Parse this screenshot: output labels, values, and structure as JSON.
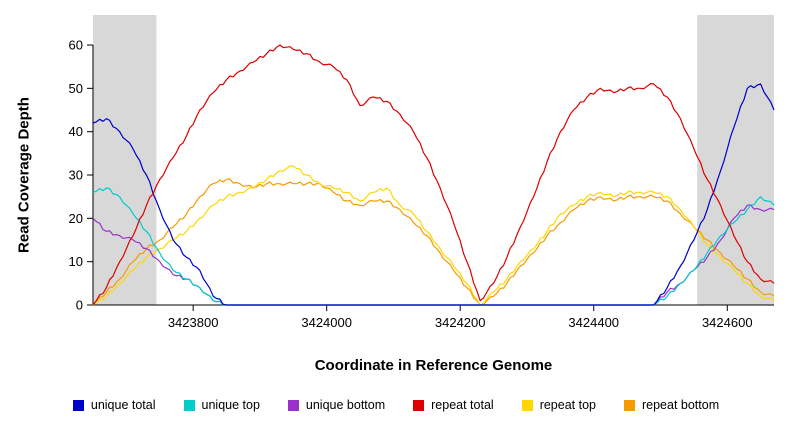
{
  "chart_data": {
    "type": "line",
    "title": "",
    "xlabel": "Coordinate in Reference Genome",
    "ylabel": "Read Coverage Depth",
    "xlim": [
      3423650,
      3424670
    ],
    "ylim": [
      0,
      60
    ],
    "x_ticks": [
      3423800,
      3424000,
      3424200,
      3424400,
      3424600
    ],
    "y_ticks": [
      0,
      10,
      20,
      30,
      40,
      50,
      60
    ],
    "grid": false,
    "legend_position": "bottom",
    "shaded_regions": [
      {
        "x0": 3423650,
        "x1": 3423745,
        "color": "#d8d8d8"
      },
      {
        "x0": 3424555,
        "x1": 3424670,
        "color": "#d8d8d8"
      }
    ],
    "x": [
      3423650,
      3423670,
      3423690,
      3423710,
      3423730,
      3423750,
      3423770,
      3423790,
      3423810,
      3423830,
      3423850,
      3423870,
      3423890,
      3423910,
      3423930,
      3423950,
      3423970,
      3423990,
      3424010,
      3424030,
      3424050,
      3424070,
      3424090,
      3424110,
      3424130,
      3424150,
      3424170,
      3424190,
      3424210,
      3424230,
      3424250,
      3424270,
      3424290,
      3424310,
      3424330,
      3424350,
      3424370,
      3424390,
      3424410,
      3424430,
      3424450,
      3424470,
      3424490,
      3424510,
      3424530,
      3424550,
      3424570,
      3424590,
      3424610,
      3424630,
      3424650,
      3424670
    ],
    "series": [
      {
        "name": "unique total",
        "color": "#0000cc",
        "values": [
          42,
          43,
          40,
          36,
          30,
          22,
          15,
          11,
          8,
          2,
          0,
          0,
          0,
          0,
          0,
          0,
          0,
          0,
          0,
          0,
          0,
          0,
          0,
          0,
          0,
          0,
          0,
          0,
          0,
          0,
          0,
          0,
          0,
          0,
          0,
          0,
          0,
          0,
          0,
          0,
          0,
          0,
          0,
          4,
          9,
          15,
          22,
          31,
          41,
          50,
          51,
          45
        ]
      },
      {
        "name": "unique top",
        "color": "#00cccc",
        "values": [
          26,
          27,
          25,
          21,
          17,
          12,
          8,
          6,
          4,
          1,
          0,
          0,
          0,
          0,
          0,
          0,
          0,
          0,
          0,
          0,
          0,
          0,
          0,
          0,
          0,
          0,
          0,
          0,
          0,
          0,
          0,
          0,
          0,
          0,
          0,
          0,
          0,
          0,
          0,
          0,
          0,
          0,
          0,
          2,
          5,
          8,
          12,
          16,
          19,
          22,
          25,
          23
        ]
      },
      {
        "name": "unique bottom",
        "color": "#9932cc",
        "values": [
          20,
          17,
          16,
          15,
          13,
          10,
          7,
          6,
          4,
          1,
          0,
          0,
          0,
          0,
          0,
          0,
          0,
          0,
          0,
          0,
          0,
          0,
          0,
          0,
          0,
          0,
          0,
          0,
          0,
          0,
          0,
          0,
          0,
          0,
          0,
          0,
          0,
          0,
          0,
          0,
          0,
          0,
          0,
          3,
          5,
          8,
          11,
          15,
          20,
          23,
          22,
          22
        ]
      },
      {
        "name": "repeat total",
        "color": "#dd0000",
        "values": [
          0,
          4,
          10,
          16,
          23,
          29,
          34,
          39,
          45,
          49,
          52,
          54,
          56,
          58,
          60,
          59,
          58,
          56,
          55,
          52,
          46,
          48,
          47,
          44,
          40,
          34,
          27,
          19,
          10,
          1,
          5,
          11,
          18,
          25,
          33,
          40,
          45,
          48,
          50,
          49,
          50,
          50,
          51,
          48,
          43,
          36,
          29,
          23,
          16,
          10,
          6,
          5
        ]
      },
      {
        "name": "repeat top",
        "color": "#ffd700",
        "values": [
          0,
          2,
          5,
          8,
          11,
          13,
          15,
          17,
          20,
          23,
          25,
          26,
          27,
          29,
          31,
          32,
          30,
          28,
          27,
          26,
          24,
          26,
          27,
          23,
          21,
          17,
          13,
          9,
          5,
          0,
          3,
          6,
          10,
          13,
          17,
          21,
          23,
          25,
          26,
          25,
          26,
          26,
          26,
          25,
          22,
          18,
          14,
          11,
          8,
          5,
          2,
          1
        ]
      },
      {
        "name": "repeat bottom",
        "color": "#f59b00",
        "values": [
          0,
          3,
          6,
          10,
          13,
          15,
          18,
          21,
          25,
          28,
          29,
          28,
          27,
          28,
          28,
          28,
          28,
          28,
          26,
          24,
          23,
          24,
          24,
          22,
          19,
          16,
          12,
          8,
          4,
          0,
          2,
          5,
          9,
          12,
          16,
          19,
          22,
          24,
          25,
          24,
          25,
          25,
          25,
          24,
          21,
          18,
          15,
          12,
          9,
          6,
          3,
          2
        ]
      }
    ]
  }
}
